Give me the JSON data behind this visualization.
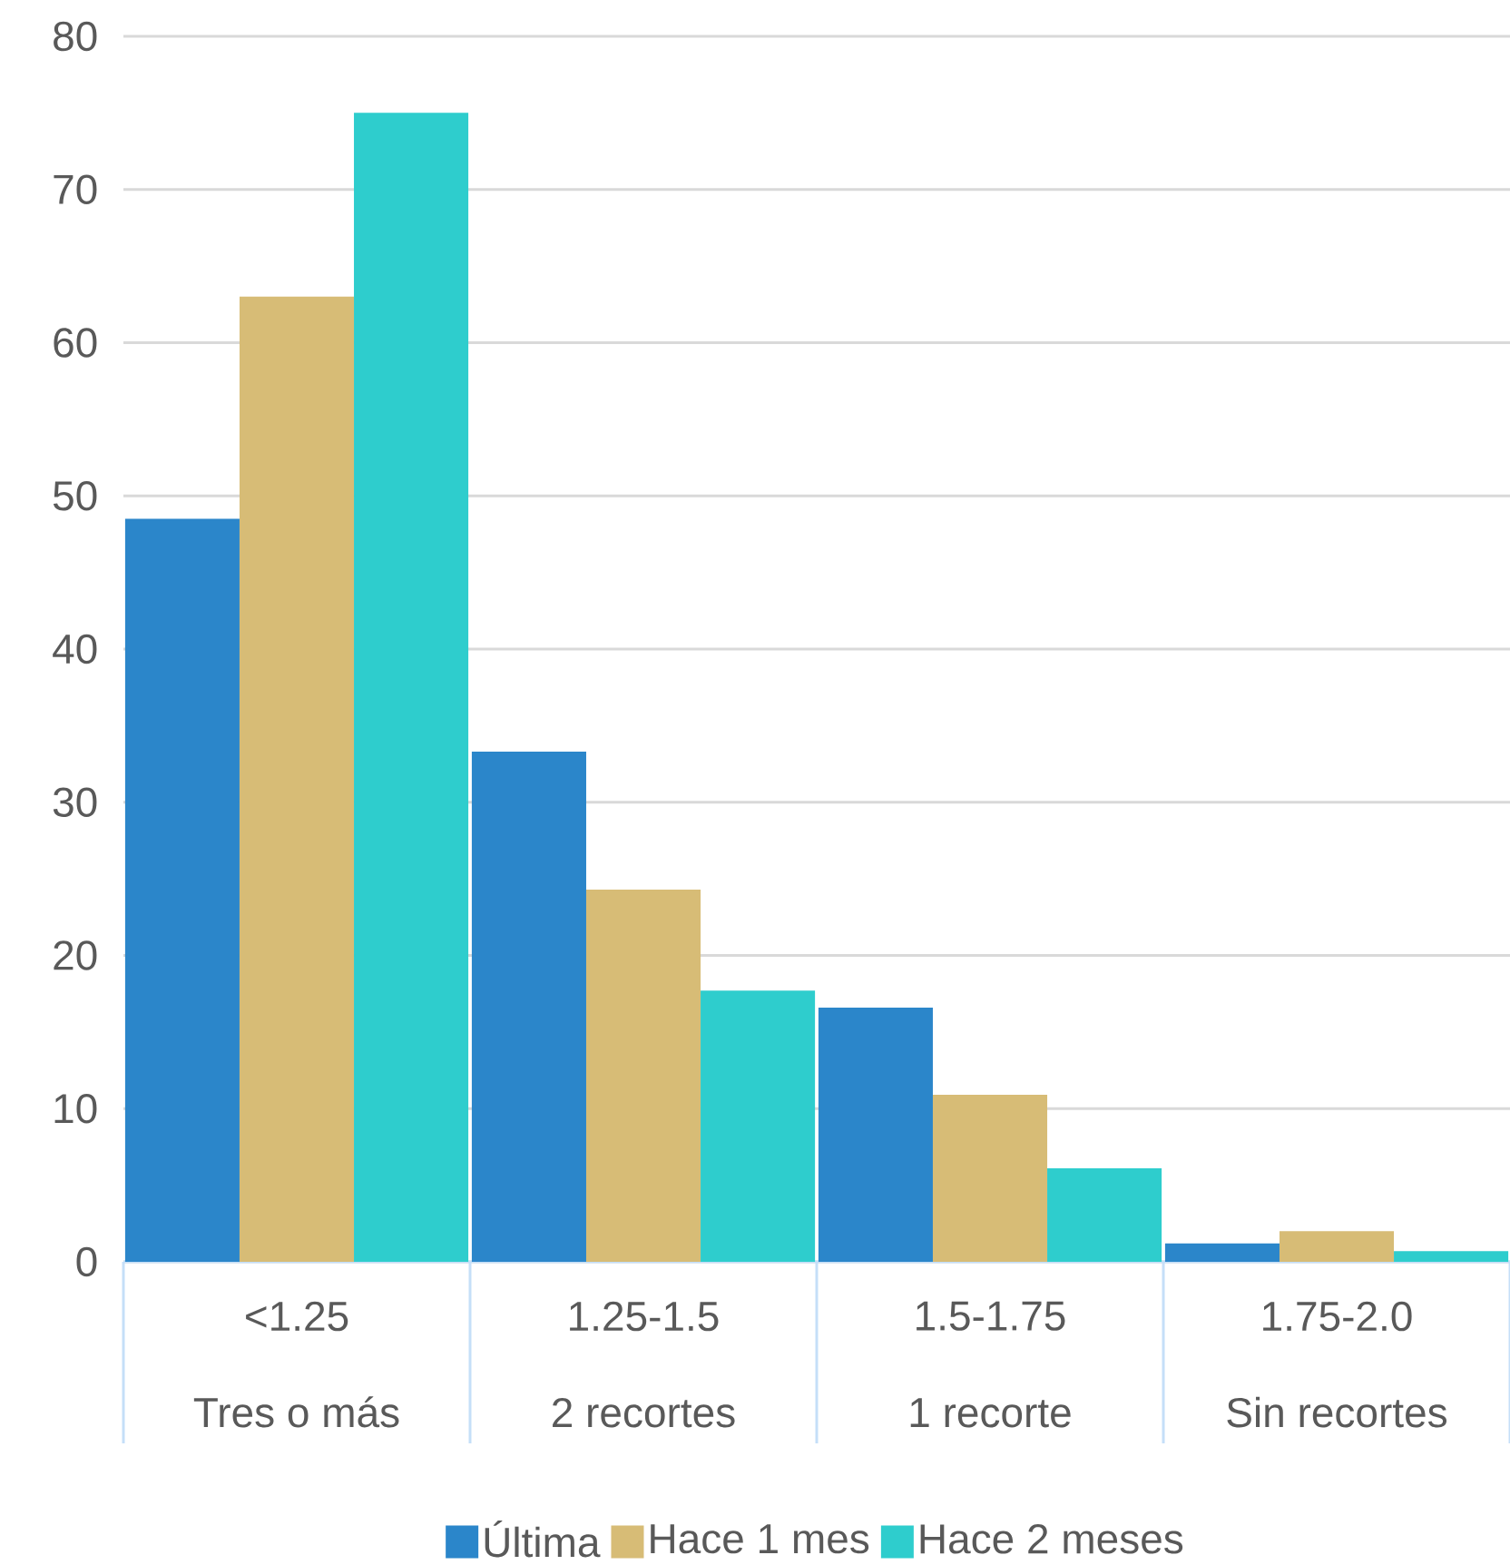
{
  "chart_data": {
    "type": "bar",
    "categories": [
      "<1.25",
      "1.25-1.5",
      "1.5-1.75",
      "1.75-2.0"
    ],
    "annotations": [
      "Tres o más",
      "2 recortes",
      "1 recorte",
      "Sin recortes"
    ],
    "series": [
      {
        "name": "Última",
        "color": "#2b86ca",
        "values": [
          48.5,
          33.3,
          16.6,
          1.2
        ]
      },
      {
        "name": "Hace 1 mes",
        "color": "#d7bc76",
        "values": [
          63.0,
          24.3,
          10.9,
          2.0
        ]
      },
      {
        "name": "Hace 2 meses",
        "color": "#2ecdcd",
        "values": [
          75.0,
          17.7,
          6.1,
          0.7
        ]
      }
    ],
    "ylim": [
      0,
      80
    ],
    "yticks": [
      0,
      10,
      20,
      30,
      40,
      50,
      60,
      70,
      80
    ],
    "grid": "y",
    "legend": "bottom"
  }
}
